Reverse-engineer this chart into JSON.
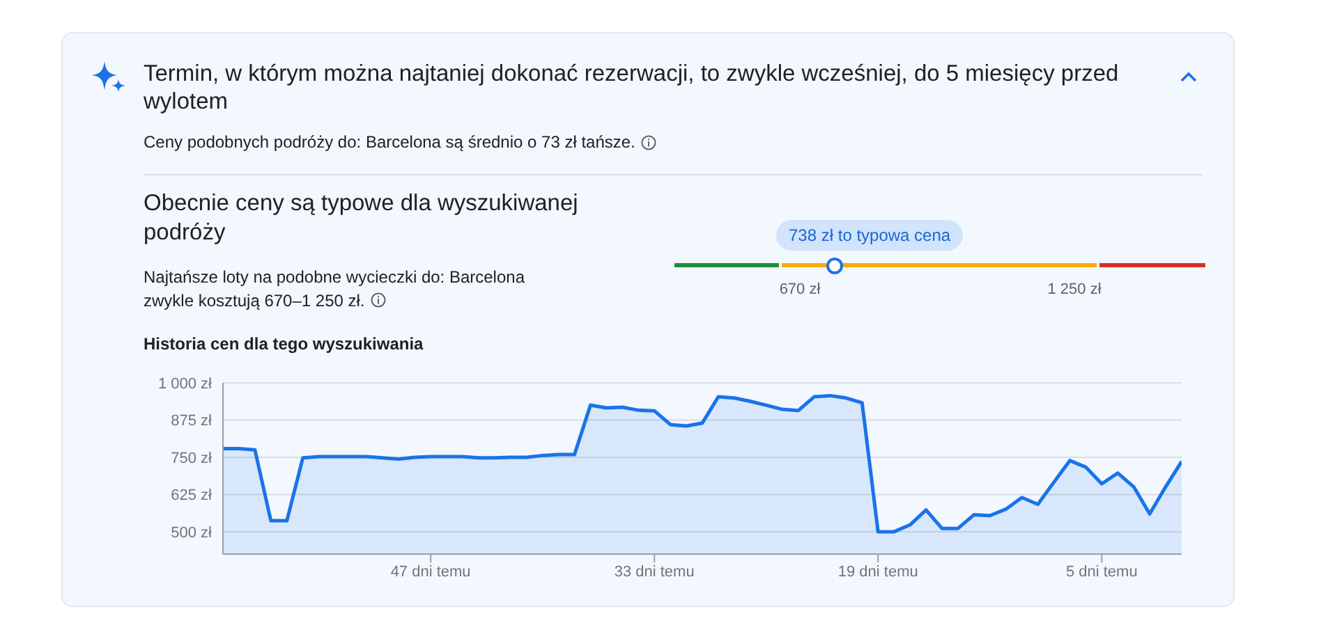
{
  "chart_data": {
    "type": "area",
    "title": "Termin, w którym można najtaniej dokonać rezerwacji, to zwykle wcześniej, do 5 miesięcy przed wylotem",
    "subtitle": "Historia cen dla tego wyszukiwania",
    "annotations": [
      "Ceny podobnych podróży do: Barcelona są średnio o 73 zł tańsze.",
      "Obecnie ceny są typowe dla wyszukiwanej podróży",
      "Najtańsze loty na podobne wycieczki do: Barcelona zwykle kosztują 670–1 250 zł.",
      "738 zł to typowa cena",
      "670 zł",
      "1 250 zł"
    ],
    "x": [
      60,
      59,
      58,
      57,
      56,
      55,
      54,
      53,
      52,
      51,
      50,
      49,
      48,
      47,
      46,
      45,
      44,
      43,
      42,
      41,
      40,
      39,
      38,
      37,
      36,
      35,
      34,
      33,
      32,
      31,
      30,
      29,
      28,
      27,
      26,
      25,
      24,
      23,
      22,
      21,
      20,
      19,
      18,
      17,
      16,
      15,
      14,
      13,
      12,
      11,
      10,
      9,
      8,
      7,
      6,
      5,
      4,
      3,
      2,
      1,
      0
    ],
    "series": [
      {
        "color": "#1a73e8",
        "values": [
          779,
          779,
          775,
          537,
          537,
          748,
          752,
          752,
          752,
          752,
          748,
          744,
          750,
          752,
          752,
          752,
          748,
          748,
          750,
          750,
          756,
          759,
          759,
          925,
          916,
          918,
          908,
          906,
          860,
          855,
          865,
          953,
          949,
          938,
          925,
          911,
          907,
          953,
          957,
          949,
          933,
          500,
          500,
          523,
          573,
          511,
          511,
          557,
          554,
          576,
          615,
          592,
          666,
          739,
          717,
          661,
          697,
          651,
          560,
          651,
          736
        ]
      }
    ],
    "xlim": [
      60,
      0
    ],
    "xticks": [
      {
        "value": 47,
        "label": "47 dni temu"
      },
      {
        "value": 33,
        "label": "33 dni temu"
      },
      {
        "value": 19,
        "label": "19 dni temu"
      },
      {
        "value": 5,
        "label": "5 dni temu"
      }
    ],
    "ylim": [
      425,
      1000
    ],
    "yticks": [
      {
        "value": 500,
        "label": "500 zł"
      },
      {
        "value": 625,
        "label": "625 zł"
      },
      {
        "value": 750,
        "label": "750 zł"
      },
      {
        "value": 875,
        "label": "875 zł"
      },
      {
        "value": 1000,
        "label": "1 000 zł"
      }
    ],
    "grid": "y",
    "legend": false,
    "marker": "none",
    "line_style": "solid"
  }
}
